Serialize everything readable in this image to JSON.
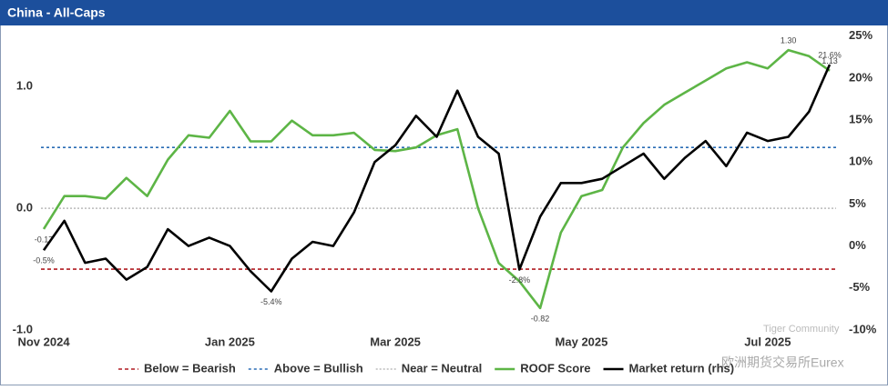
{
  "chart_data": {
    "type": "line",
    "title": "China - All-Caps",
    "categories": [
      "Nov 2024",
      null,
      null,
      null,
      null,
      null,
      null,
      null,
      null,
      "Jan 2025",
      null,
      null,
      null,
      null,
      null,
      null,
      null,
      "Mar 2025",
      null,
      null,
      null,
      null,
      null,
      null,
      null,
      null,
      "May 2025",
      null,
      null,
      null,
      null,
      null,
      null,
      null,
      null,
      "Jul 2025",
      null,
      null,
      null
    ],
    "series": [
      {
        "name": "ROOF Score",
        "color": "#5db546",
        "axis": "y",
        "values": [
          -0.17,
          0.1,
          0.1,
          0.08,
          0.25,
          0.1,
          0.4,
          0.6,
          0.58,
          0.8,
          0.55,
          0.55,
          0.72,
          0.6,
          0.6,
          0.62,
          0.48,
          0.47,
          0.5,
          0.6,
          0.65,
          0.0,
          -0.45,
          -0.6,
          -0.82,
          -0.2,
          0.1,
          0.15,
          0.5,
          0.7,
          0.85,
          0.95,
          1.05,
          1.15,
          1.2,
          1.15,
          1.3,
          1.25,
          1.13
        ],
        "value_labels": [
          "-0.17",
          null,
          null,
          null,
          null,
          null,
          null,
          null,
          null,
          null,
          null,
          null,
          null,
          null,
          null,
          null,
          null,
          null,
          null,
          null,
          null,
          null,
          null,
          null,
          "-0.82",
          null,
          null,
          null,
          null,
          null,
          null,
          null,
          null,
          null,
          null,
          null,
          "1.30",
          null,
          "1.13"
        ]
      },
      {
        "name": "Market return (rhs)",
        "color": "#000000",
        "axis": "y2",
        "values": [
          -0.5,
          3,
          -2,
          -1.5,
          -4,
          -2.5,
          2,
          0,
          1,
          0,
          -3,
          -5.4,
          -1.5,
          0.5,
          0,
          4,
          10,
          12,
          15.5,
          13,
          18.5,
          13,
          11,
          -2.8,
          3.5,
          7.5,
          7.5,
          8,
          9.5,
          11,
          8,
          10.5,
          12.5,
          9.5,
          13.5,
          12.5,
          13,
          16,
          21.6
        ],
        "value_labels": [
          "-0.5%",
          null,
          null,
          null,
          null,
          null,
          null,
          null,
          null,
          null,
          null,
          "-5.4%",
          null,
          null,
          null,
          null,
          null,
          null,
          null,
          null,
          null,
          null,
          null,
          "-2.8%",
          null,
          null,
          null,
          null,
          null,
          null,
          null,
          null,
          null,
          null,
          null,
          null,
          null,
          null,
          "21.6%"
        ]
      }
    ],
    "reference_lines": [
      {
        "name": "Below = Bearish",
        "value": -0.5,
        "color": "#b01c22"
      },
      {
        "name": "Above = Bullish",
        "value": 0.5,
        "color": "#2a6db5"
      },
      {
        "name": "Near = Neutral",
        "value": 0,
        "color": "#bbbbbb"
      }
    ],
    "ylim": [
      -1,
      1.45
    ],
    "yticks": [
      {
        "value": -1,
        "label": "-1.0"
      },
      {
        "value": 0,
        "label": "0.0"
      },
      {
        "value": 1,
        "label": "1.0"
      }
    ],
    "y2lim": [
      -10,
      25.5
    ],
    "y2ticks": [
      {
        "value": -10,
        "label": "-10%"
      },
      {
        "value": -5,
        "label": "-5%"
      },
      {
        "value": 0,
        "label": "0%"
      },
      {
        "value": 5,
        "label": "5%"
      },
      {
        "value": 10,
        "label": "10%"
      },
      {
        "value": 15,
        "label": "15%"
      },
      {
        "value": 20,
        "label": "20%"
      },
      {
        "value": 25,
        "label": "25%"
      }
    ],
    "watermark": [
      "Tiger Community",
      "欧洲期货交易所Eurex"
    ]
  }
}
